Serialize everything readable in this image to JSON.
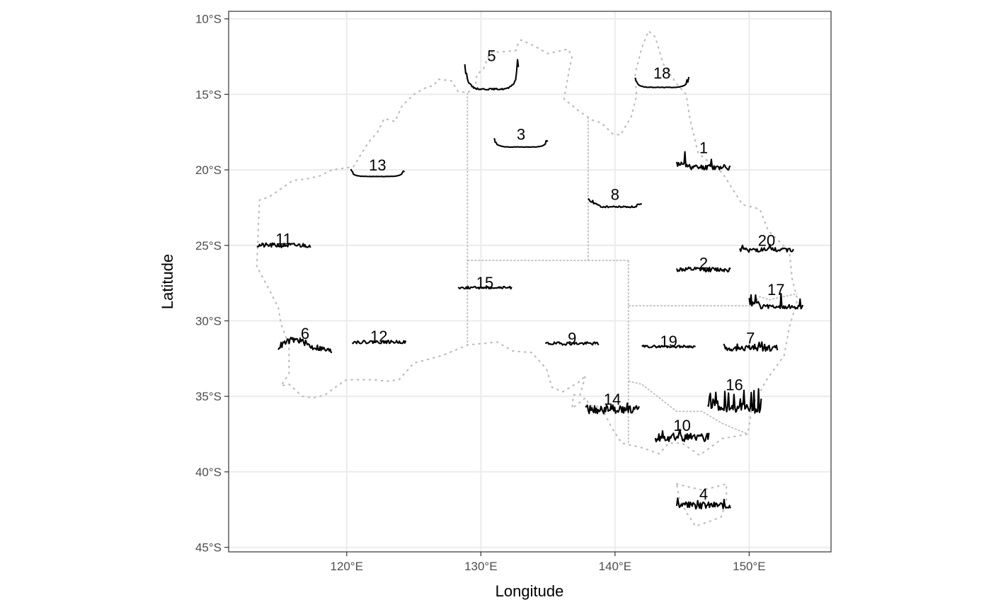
{
  "chart_data": {
    "type": "line",
    "subtype": "glyph-map",
    "xlabel": "Longitude",
    "ylabel": "Latitude",
    "xlim": [
      111.2,
      156.1
    ],
    "ylim": [
      -45.3,
      -9.5
    ],
    "grid": true,
    "x_ticks": [
      {
        "value": 120,
        "label": "120°E"
      },
      {
        "value": 130,
        "label": "130°E"
      },
      {
        "value": 140,
        "label": "140°E"
      },
      {
        "value": 150,
        "label": "150°E"
      }
    ],
    "y_ticks": [
      {
        "value": -10,
        "label": "10°S"
      },
      {
        "value": -15,
        "label": "15°S"
      },
      {
        "value": -20,
        "label": "20°S"
      },
      {
        "value": -25,
        "label": "25°S"
      },
      {
        "value": -30,
        "label": "30°S"
      },
      {
        "value": -35,
        "label": "35°S"
      },
      {
        "value": -40,
        "label": "40°S"
      },
      {
        "value": -45,
        "label": "45°S"
      }
    ],
    "outline_color": "#bebebe",
    "glyph_color": "#000000",
    "grid_color": "#ebebeb",
    "outline": {
      "mainland": [
        [
          113.3,
          -26.4
        ],
        [
          113.5,
          -22.0
        ],
        [
          114.2,
          -21.8
        ],
        [
          116.0,
          -20.7
        ],
        [
          117.0,
          -20.6
        ],
        [
          118.0,
          -20.4
        ],
        [
          118.9,
          -20.0
        ],
        [
          120.5,
          -19.8
        ],
        [
          121.6,
          -18.2
        ],
        [
          122.3,
          -17.5
        ],
        [
          122.8,
          -16.6
        ],
        [
          123.6,
          -16.8
        ],
        [
          124.1,
          -15.8
        ],
        [
          125.0,
          -15.0
        ],
        [
          125.8,
          -14.6
        ],
        [
          126.5,
          -14.4
        ],
        [
          126.8,
          -14.0
        ],
        [
          127.8,
          -14.1
        ],
        [
          128.3,
          -14.8
        ],
        [
          129.0,
          -14.9
        ],
        [
          129.6,
          -14.5
        ],
        [
          129.7,
          -13.7
        ],
        [
          130.2,
          -13.3
        ],
        [
          130.6,
          -12.4
        ],
        [
          130.8,
          -12.2
        ],
        [
          131.3,
          -12.2
        ],
        [
          132.6,
          -12.1
        ],
        [
          132.8,
          -11.6
        ],
        [
          133.0,
          -11.4
        ],
        [
          134.0,
          -11.8
        ],
        [
          135.0,
          -12.3
        ],
        [
          136.5,
          -12.0
        ],
        [
          136.8,
          -12.5
        ],
        [
          136.6,
          -13.3
        ],
        [
          136.2,
          -15.3
        ],
        [
          137.3,
          -16.1
        ],
        [
          138.3,
          -16.7
        ],
        [
          139.0,
          -16.9
        ],
        [
          139.8,
          -17.6
        ],
        [
          140.4,
          -17.7
        ],
        [
          141.2,
          -16.5
        ],
        [
          141.6,
          -15.1
        ],
        [
          141.5,
          -13.6
        ],
        [
          142.0,
          -11.9
        ],
        [
          142.5,
          -10.8
        ],
        [
          143.0,
          -11.2
        ],
        [
          143.6,
          -13.0
        ],
        [
          144.6,
          -14.3
        ],
        [
          145.3,
          -15.0
        ],
        [
          145.6,
          -16.7
        ],
        [
          146.2,
          -18.9
        ],
        [
          148.0,
          -20.2
        ],
        [
          149.5,
          -22.3
        ],
        [
          150.8,
          -22.6
        ],
        [
          151.4,
          -24.0
        ],
        [
          153.0,
          -25.4
        ],
        [
          153.2,
          -27.2
        ],
        [
          153.6,
          -28.6
        ],
        [
          153.0,
          -30.4
        ],
        [
          152.6,
          -32.3
        ],
        [
          151.3,
          -33.9
        ],
        [
          150.2,
          -35.7
        ],
        [
          149.9,
          -37.5
        ],
        [
          148.0,
          -37.8
        ],
        [
          146.3,
          -38.9
        ],
        [
          145.0,
          -38.1
        ],
        [
          144.0,
          -38.1
        ],
        [
          143.3,
          -38.8
        ],
        [
          142.0,
          -38.4
        ],
        [
          140.5,
          -38.1
        ],
        [
          139.7,
          -37.0
        ],
        [
          139.0,
          -35.7
        ],
        [
          138.1,
          -35.6
        ],
        [
          137.8,
          -35.1
        ],
        [
          136.8,
          -35.8
        ],
        [
          136.9,
          -34.9
        ],
        [
          137.4,
          -34.9
        ],
        [
          137.8,
          -33.6
        ],
        [
          137.4,
          -34.0
        ],
        [
          136.1,
          -34.7
        ],
        [
          135.3,
          -34.4
        ],
        [
          134.9,
          -33.2
        ],
        [
          133.8,
          -32.1
        ],
        [
          132.4,
          -32.0
        ],
        [
          131.2,
          -31.4
        ],
        [
          129.0,
          -31.6
        ],
        [
          127.1,
          -32.3
        ],
        [
          125.0,
          -32.8
        ],
        [
          123.9,
          -33.9
        ],
        [
          123.0,
          -34.0
        ],
        [
          122.0,
          -33.9
        ],
        [
          120.0,
          -33.9
        ],
        [
          119.3,
          -34.3
        ],
        [
          118.4,
          -34.9
        ],
        [
          117.5,
          -35.1
        ],
        [
          116.7,
          -35.0
        ],
        [
          115.7,
          -34.2
        ],
        [
          115.1,
          -34.3
        ],
        [
          115.7,
          -33.5
        ],
        [
          115.7,
          -32.3
        ],
        [
          115.7,
          -31.6
        ],
        [
          115.1,
          -30.2
        ],
        [
          114.9,
          -29.1
        ],
        [
          114.2,
          -27.9
        ],
        [
          113.3,
          -26.4
        ]
      ],
      "tasmania": [
        [
          144.6,
          -40.8
        ],
        [
          145.5,
          -41.0
        ],
        [
          146.5,
          -41.2
        ],
        [
          147.5,
          -41.0
        ],
        [
          148.3,
          -40.8
        ],
        [
          148.3,
          -42.0
        ],
        [
          147.9,
          -43.0
        ],
        [
          147.0,
          -43.3
        ],
        [
          146.0,
          -43.6
        ],
        [
          145.4,
          -42.8
        ],
        [
          144.8,
          -41.8
        ],
        [
          144.6,
          -40.8
        ]
      ],
      "borders": [
        [
          [
            129.0,
            -14.9
          ],
          [
            129.0,
            -31.6
          ]
        ],
        [
          [
            129.0,
            -26.0
          ],
          [
            141.0,
            -26.0
          ]
        ],
        [
          [
            138.0,
            -16.5
          ],
          [
            138.0,
            -26.0
          ]
        ],
        [
          [
            141.0,
            -26.0
          ],
          [
            141.0,
            -38.1
          ]
        ],
        [
          [
            141.0,
            -29.0
          ],
          [
            150.2,
            -29.0
          ],
          [
            150.8,
            -28.4
          ],
          [
            151.5,
            -28.6
          ],
          [
            153.6,
            -28.2
          ]
        ],
        [
          [
            141.0,
            -34.0
          ],
          [
            142.0,
            -34.2
          ],
          [
            143.3,
            -35.1
          ],
          [
            144.6,
            -36.0
          ],
          [
            146.5,
            -36.0
          ],
          [
            148.0,
            -36.8
          ],
          [
            149.9,
            -37.5
          ]
        ]
      ]
    },
    "stations": [
      {
        "id": "1",
        "label": "1",
        "lon": 146.6,
        "lat": -19.4,
        "width": 4.0,
        "height": 1.2,
        "shape": "spiky",
        "seed": 11
      },
      {
        "id": "2",
        "label": "2",
        "lon": 146.6,
        "lat": -26.6,
        "width": 4.0,
        "height": 0.3,
        "shape": "flat",
        "seed": 12
      },
      {
        "id": "3",
        "label": "3",
        "lon": 133.0,
        "lat": -18.2,
        "width": 4.0,
        "height": 0.6,
        "shape": "bowl",
        "seed": 13
      },
      {
        "id": "4",
        "label": "4",
        "lon": 146.6,
        "lat": -42.1,
        "width": 4.0,
        "height": 0.7,
        "shape": "noisy",
        "seed": 14
      },
      {
        "id": "5",
        "label": "5",
        "lon": 130.8,
        "lat": -13.7,
        "width": 4.0,
        "height": 2.0,
        "shape": "bowl",
        "seed": 15
      },
      {
        "id": "6",
        "label": "6",
        "lon": 116.9,
        "lat": -31.6,
        "width": 4.0,
        "height": 1.0,
        "shape": "hump",
        "seed": 16
      },
      {
        "id": "7",
        "label": "7",
        "lon": 150.1,
        "lat": -31.7,
        "width": 4.0,
        "height": 0.6,
        "shape": "noisy",
        "seed": 17
      },
      {
        "id": "8",
        "label": "8",
        "lon": 140.0,
        "lat": -22.2,
        "width": 4.0,
        "height": 0.6,
        "shape": "leftpeak",
        "seed": 18
      },
      {
        "id": "9",
        "label": "9",
        "lon": 136.8,
        "lat": -31.5,
        "width": 4.0,
        "height": 0.2,
        "shape": "flat",
        "seed": 19
      },
      {
        "id": "10",
        "label": "10",
        "lon": 145.0,
        "lat": -37.6,
        "width": 4.0,
        "height": 0.8,
        "shape": "noisy",
        "seed": 20
      },
      {
        "id": "11",
        "label": "11",
        "lon": 115.3,
        "lat": -25.0,
        "width": 4.0,
        "height": 0.3,
        "shape": "flat",
        "seed": 21
      },
      {
        "id": "12",
        "label": "12",
        "lon": 122.4,
        "lat": -31.4,
        "width": 4.0,
        "height": 0.2,
        "shape": "flat",
        "seed": 22
      },
      {
        "id": "13",
        "label": "13",
        "lon": 122.3,
        "lat": -20.2,
        "width": 4.0,
        "height": 0.5,
        "shape": "bowl",
        "seed": 23
      },
      {
        "id": "14",
        "label": "14",
        "lon": 139.8,
        "lat": -35.8,
        "width": 4.0,
        "height": 0.7,
        "shape": "noisy",
        "seed": 24
      },
      {
        "id": "15",
        "label": "15",
        "lon": 130.3,
        "lat": -27.8,
        "width": 4.0,
        "height": 0.15,
        "shape": "flat",
        "seed": 25
      },
      {
        "id": "16",
        "label": "16",
        "lon": 148.9,
        "lat": -35.3,
        "width": 4.0,
        "height": 1.6,
        "shape": "spiky",
        "seed": 26
      },
      {
        "id": "17",
        "label": "17",
        "lon": 152.0,
        "lat": -28.7,
        "width": 4.0,
        "height": 1.0,
        "shape": "spiky",
        "seed": 27
      },
      {
        "id": "18",
        "label": "18",
        "lon": 143.5,
        "lat": -14.2,
        "width": 4.0,
        "height": 0.7,
        "shape": "bowl",
        "seed": 28
      },
      {
        "id": "19",
        "label": "19",
        "lon": 144.0,
        "lat": -31.7,
        "width": 4.0,
        "height": 0.15,
        "shape": "flat",
        "seed": 29
      },
      {
        "id": "20",
        "label": "20",
        "lon": 151.3,
        "lat": -25.2,
        "width": 4.0,
        "height": 0.5,
        "shape": "noisy",
        "seed": 30
      }
    ]
  }
}
